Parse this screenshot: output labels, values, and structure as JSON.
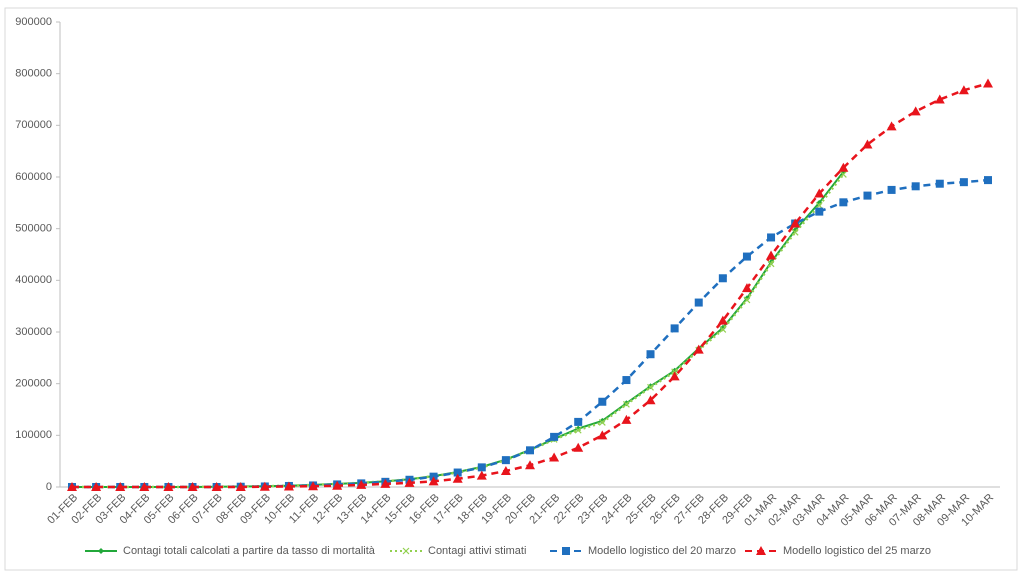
{
  "chart_data": {
    "type": "line",
    "categories": [
      "01-FEB",
      "02-FEB",
      "03-FEB",
      "04-FEB",
      "05-FEB",
      "06-FEB",
      "07-FEB",
      "08-FEB",
      "09-FEB",
      "10-FEB",
      "11-FEB",
      "12-FEB",
      "13-FEB",
      "14-FEB",
      "15-FEB",
      "16-FEB",
      "17-FEB",
      "18-FEB",
      "19-FEB",
      "20-FEB",
      "21-FEB",
      "22-FEB",
      "23-FEB",
      "24-FEB",
      "25-FEB",
      "26-FEB",
      "27-FEB",
      "28-FEB",
      "29-FEB",
      "01-MAR",
      "02-MAR",
      "03-MAR",
      "04-MAR",
      "05-MAR",
      "06-MAR",
      "07-MAR",
      "08-MAR",
      "09-MAR",
      "10-MAR"
    ],
    "series": [
      {
        "name": "Contagi totali calcolati a partire da tasso di mortalità",
        "color": "#22a83a",
        "dash": "solid",
        "marker": "diamond",
        "values": [
          0,
          0,
          0,
          0,
          0,
          0,
          500,
          1000,
          1500,
          2500,
          4000,
          6000,
          8000,
          11000,
          15000,
          21000,
          29000,
          39000,
          53000,
          72000,
          93000,
          113000,
          128000,
          162000,
          195000,
          225000,
          268000,
          308000,
          365000,
          435000,
          497000,
          550000,
          610000,
          null,
          null,
          null,
          null,
          null,
          null
        ]
      },
      {
        "name": "Contagi attivi stimati",
        "color": "#92d050",
        "dash": "dotted",
        "marker": "cross",
        "values": [
          0,
          0,
          0,
          0,
          0,
          0,
          500,
          1000,
          1500,
          2500,
          4000,
          6000,
          8000,
          11000,
          15000,
          21000,
          28000,
          38000,
          52000,
          71000,
          92000,
          110000,
          125000,
          160000,
          193000,
          223000,
          265000,
          305000,
          362000,
          432000,
          493000,
          545000,
          605000,
          null,
          null,
          null,
          null,
          null,
          null
        ]
      },
      {
        "name": "Modello logistico del 20 marzo",
        "color": "#1f6fbf",
        "dash": "dashed",
        "marker": "square",
        "values": [
          0,
          0,
          0,
          0,
          0,
          0,
          0,
          500,
          1000,
          2000,
          3000,
          5000,
          7000,
          10000,
          14000,
          20000,
          28000,
          38000,
          52000,
          71000,
          97000,
          126000,
          165000,
          207000,
          257000,
          307000,
          357000,
          404000,
          446000,
          483000,
          510000,
          533000,
          551000,
          564000,
          575000,
          582000,
          587000,
          590000,
          594000
        ]
      },
      {
        "name": "Modello logistico del 25 marzo",
        "color": "#e8141c",
        "dash": "dashed",
        "marker": "triangle",
        "values": [
          0,
          0,
          0,
          0,
          0,
          0,
          0,
          0,
          500,
          1000,
          1500,
          2500,
          4000,
          6000,
          8000,
          11000,
          16000,
          22000,
          31000,
          42000,
          57000,
          76000,
          100000,
          130000,
          168000,
          214000,
          266000,
          322000,
          385000,
          448000,
          510000,
          568000,
          618000,
          663000,
          698000,
          727000,
          750000,
          768000,
          781000
        ]
      }
    ],
    "ylim": [
      0,
      900000
    ],
    "yticks": [
      0,
      100000,
      200000,
      300000,
      400000,
      500000,
      600000,
      700000,
      800000,
      900000
    ],
    "legend": "bottom"
  }
}
